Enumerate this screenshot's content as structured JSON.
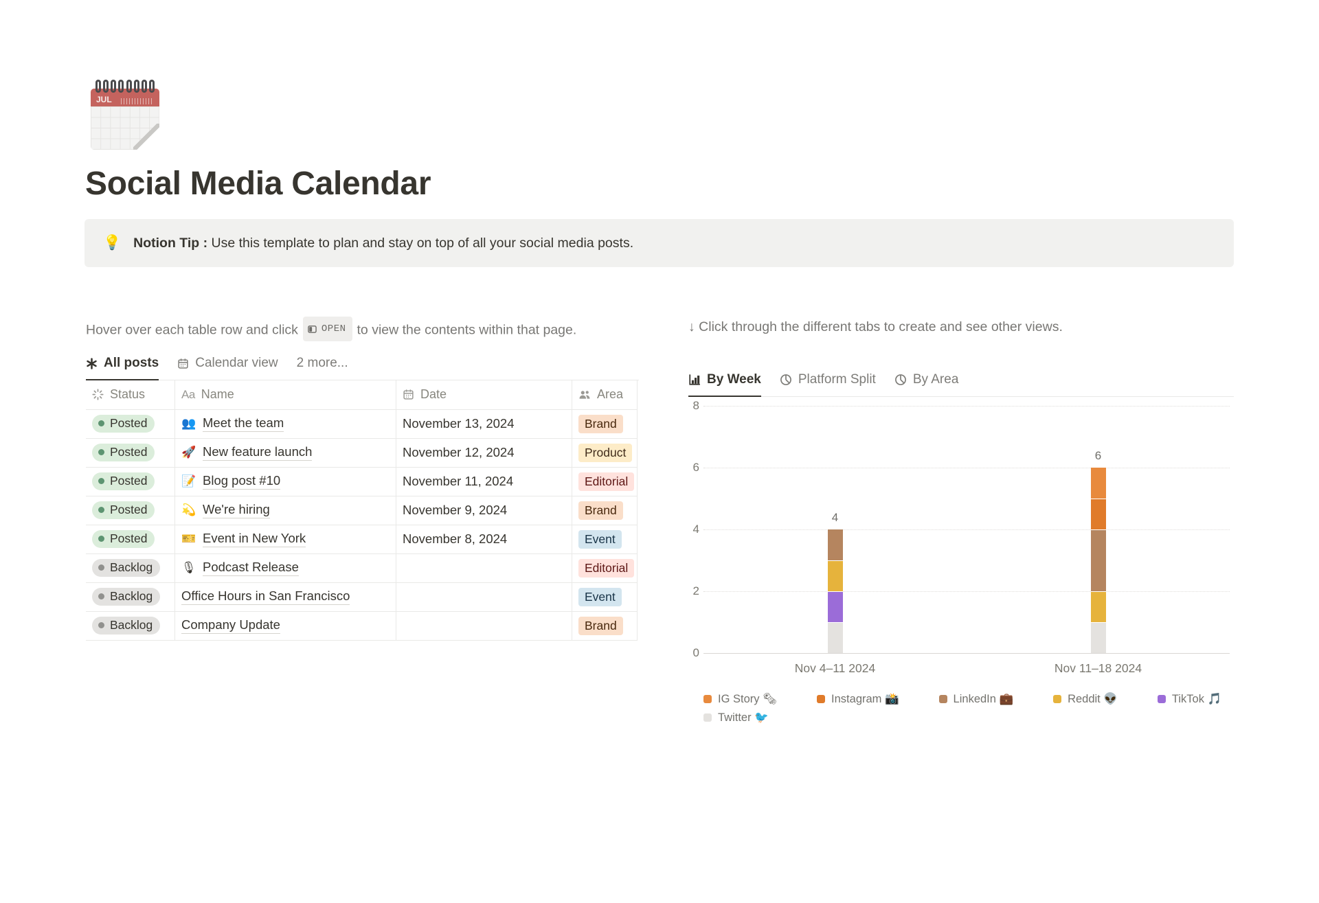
{
  "page": {
    "title": "Social Media Calendar",
    "icon": "spiral-calendar",
    "icon_month": "JUL"
  },
  "callout": {
    "icon": "💡",
    "title": "Notion Tip :",
    "text": "Use this template to plan and stay on top of all your social media posts."
  },
  "left_panel": {
    "instruction_before": "Hover over each table row and click",
    "open_button_label": "OPEN",
    "instruction_after": "to view the contents within that page.",
    "tabs": [
      {
        "label": "All posts",
        "icon": "asterisk-icon",
        "active": true
      },
      {
        "label": "Calendar view",
        "icon": "calendar-icon",
        "active": false
      },
      {
        "label": "2 more...",
        "icon": null,
        "active": false
      }
    ],
    "table": {
      "columns": [
        {
          "label": "Status",
          "icon": "status-icon"
        },
        {
          "label": "Name",
          "icon": "aa-icon"
        },
        {
          "label": "Date",
          "icon": "calendar-icon"
        },
        {
          "label": "Area",
          "icon": "people-icon"
        }
      ],
      "rows": [
        {
          "status": "Posted",
          "status_color": "green",
          "emoji": "👥",
          "name": "Meet the team",
          "date": "November 13, 2024",
          "area": "Brand",
          "area_color": "orange"
        },
        {
          "status": "Posted",
          "status_color": "green",
          "emoji": "🚀",
          "name": "New feature launch",
          "date": "November 12, 2024",
          "area": "Product",
          "area_color": "yellow"
        },
        {
          "status": "Posted",
          "status_color": "green",
          "emoji": "📝",
          "name": "Blog post #10",
          "date": "November 11, 2024",
          "area": "Editorial",
          "area_color": "red"
        },
        {
          "status": "Posted",
          "status_color": "green",
          "emoji": "💫",
          "name": "We're hiring",
          "date": "November 9, 2024",
          "area": "Brand",
          "area_color": "orange"
        },
        {
          "status": "Posted",
          "status_color": "green",
          "emoji": "🎫",
          "name": "Event in New York",
          "date": "November 8, 2024",
          "area": "Event",
          "area_color": "blue"
        },
        {
          "status": "Backlog",
          "status_color": "gray",
          "emoji": "🎙",
          "name": "Podcast Release",
          "date": "",
          "area": "Editorial",
          "area_color": "red"
        },
        {
          "status": "Backlog",
          "status_color": "gray",
          "emoji": "",
          "name": "Office Hours in San Francisco",
          "date": "",
          "area": "Event",
          "area_color": "blue"
        },
        {
          "status": "Backlog",
          "status_color": "gray",
          "emoji": "",
          "name": "Company Update",
          "date": "",
          "area": "Brand",
          "area_color": "orange"
        }
      ]
    }
  },
  "right_panel": {
    "instruction": "↓ Click through the different tabs to create and see other views.",
    "tabs": [
      {
        "label": "By Week",
        "icon": "bar-chart-icon",
        "active": true
      },
      {
        "label": "Platform Split",
        "icon": "pie-chart-icon",
        "active": false
      },
      {
        "label": "By Area",
        "icon": "pie-chart-icon",
        "active": false
      }
    ]
  },
  "chart_data": {
    "type": "bar",
    "stacked": true,
    "title": "",
    "categories": [
      "Nov 4–11 2024",
      "Nov 11–18 2024"
    ],
    "series": [
      {
        "name": "IG Story 🗞",
        "color": "#E88A3D",
        "values": [
          0,
          1
        ]
      },
      {
        "name": "Instagram 📸",
        "color": "#E07B2A",
        "values": [
          0,
          1
        ]
      },
      {
        "name": "LinkedIn 💼",
        "color": "#B5855F",
        "values": [
          1,
          2
        ]
      },
      {
        "name": "Reddit 👽",
        "color": "#E6B33C",
        "values": [
          1,
          1
        ]
      },
      {
        "name": "TikTok 🎵",
        "color": "#9B6CD8",
        "values": [
          1,
          0
        ]
      },
      {
        "name": "Twitter 🐦",
        "color": "#E4E2DF",
        "values": [
          1,
          1
        ]
      }
    ],
    "totals": [
      4,
      6
    ],
    "ylim": [
      0,
      8
    ],
    "yticks": [
      8,
      6,
      4,
      2,
      0
    ],
    "grid": true,
    "legend_position": "bottom"
  },
  "colors": {
    "text_dark": "#37352F",
    "text_gray": "#787774",
    "callout_bg": "#F1F1EF",
    "border": "#E9E9E7",
    "status": {
      "green": {
        "bg": "#DBEDDB",
        "dot": "#5D9471"
      },
      "gray": {
        "bg": "#E3E2E0",
        "dot": "#91918E"
      }
    },
    "tags": {
      "orange": {
        "bg": "#FADEC9",
        "text": "#49290E"
      },
      "yellow": {
        "bg": "#FDECC8",
        "text": "#402C1B"
      },
      "red": {
        "bg": "#FFE2DD",
        "text": "#5D1715"
      },
      "blue": {
        "bg": "#D3E5EF",
        "text": "#183347"
      }
    }
  }
}
